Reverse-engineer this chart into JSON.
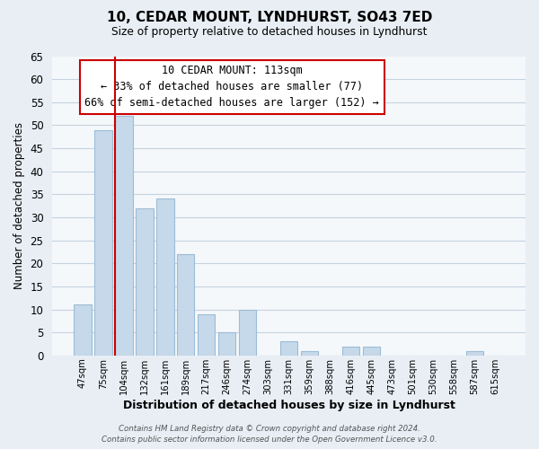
{
  "title": "10, CEDAR MOUNT, LYNDHURST, SO43 7ED",
  "subtitle": "Size of property relative to detached houses in Lyndhurst",
  "xlabel": "Distribution of detached houses by size in Lyndhurst",
  "ylabel": "Number of detached properties",
  "bar_labels": [
    "47sqm",
    "75sqm",
    "104sqm",
    "132sqm",
    "161sqm",
    "189sqm",
    "217sqm",
    "246sqm",
    "274sqm",
    "303sqm",
    "331sqm",
    "359sqm",
    "388sqm",
    "416sqm",
    "445sqm",
    "473sqm",
    "501sqm",
    "530sqm",
    "558sqm",
    "587sqm",
    "615sqm"
  ],
  "bar_values": [
    11,
    49,
    52,
    32,
    34,
    22,
    9,
    5,
    10,
    0,
    3,
    1,
    0,
    2,
    2,
    0,
    0,
    0,
    0,
    1,
    0
  ],
  "bar_color": "#c6d9ea",
  "bar_edge_color": "#9bbcd6",
  "vline_index": 2,
  "vline_color": "#cc0000",
  "ylim": [
    0,
    65
  ],
  "yticks": [
    0,
    5,
    10,
    15,
    20,
    25,
    30,
    35,
    40,
    45,
    50,
    55,
    60,
    65
  ],
  "annotation_line0": "10 CEDAR MOUNT: 113sqm",
  "annotation_line1": "← 33% of detached houses are smaller (77)",
  "annotation_line2": "66% of semi-detached houses are larger (152) →",
  "annotation_box_color": "#ffffff",
  "annotation_box_edge": "#cc0000",
  "footer1": "Contains HM Land Registry data © Crown copyright and database right 2024.",
  "footer2": "Contains public sector information licensed under the Open Government Licence v3.0.",
  "background_color": "#e8eef4",
  "plot_background_color": "#f5f8fb",
  "grid_color": "#c5d3de"
}
